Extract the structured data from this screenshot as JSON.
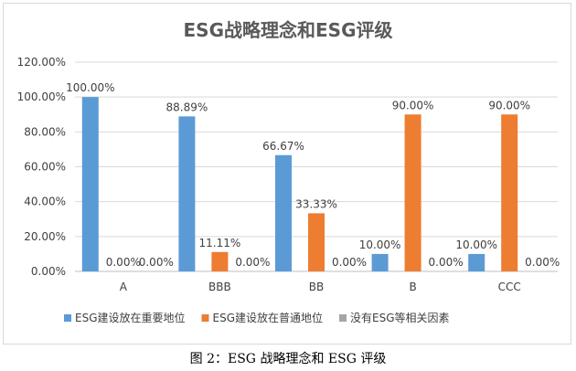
{
  "chart_data": {
    "type": "bar",
    "title": "ESG战略理念和ESG评级",
    "categories": [
      "A",
      "BBB",
      "BB",
      "B",
      "CCC"
    ],
    "series": [
      {
        "name": "ESG建设放在重要地位",
        "color": "#5b9bd5",
        "values": [
          100.0,
          88.89,
          66.67,
          10.0,
          10.0
        ]
      },
      {
        "name": "ESG建设放在普通地位",
        "color": "#ed7d31",
        "values": [
          0.0,
          11.11,
          33.33,
          90.0,
          90.0
        ]
      },
      {
        "name": "没有ESG等相关因素",
        "color": "#a5a5a5",
        "values": [
          0.0,
          0.0,
          0.0,
          0.0,
          0.0
        ]
      }
    ],
    "data_labels": [
      [
        "100.00%",
        "88.89%",
        "66.67%",
        "10.00%",
        "10.00%"
      ],
      [
        "0.00%",
        "11.11%",
        "33.33%",
        "90.00%",
        "90.00%"
      ],
      [
        "0.00%",
        "0.00%",
        "0.00%",
        "0.00%",
        "0.00%"
      ]
    ],
    "ylim": [
      0,
      120
    ],
    "y_ticks": [
      "0.00%",
      "20.00%",
      "40.00%",
      "60.00%",
      "80.00%",
      "100.00%",
      "120.00%"
    ],
    "grid": true,
    "legend_position": "bottom"
  },
  "caption": "图 2：ESG 战略理念和 ESG 评级"
}
